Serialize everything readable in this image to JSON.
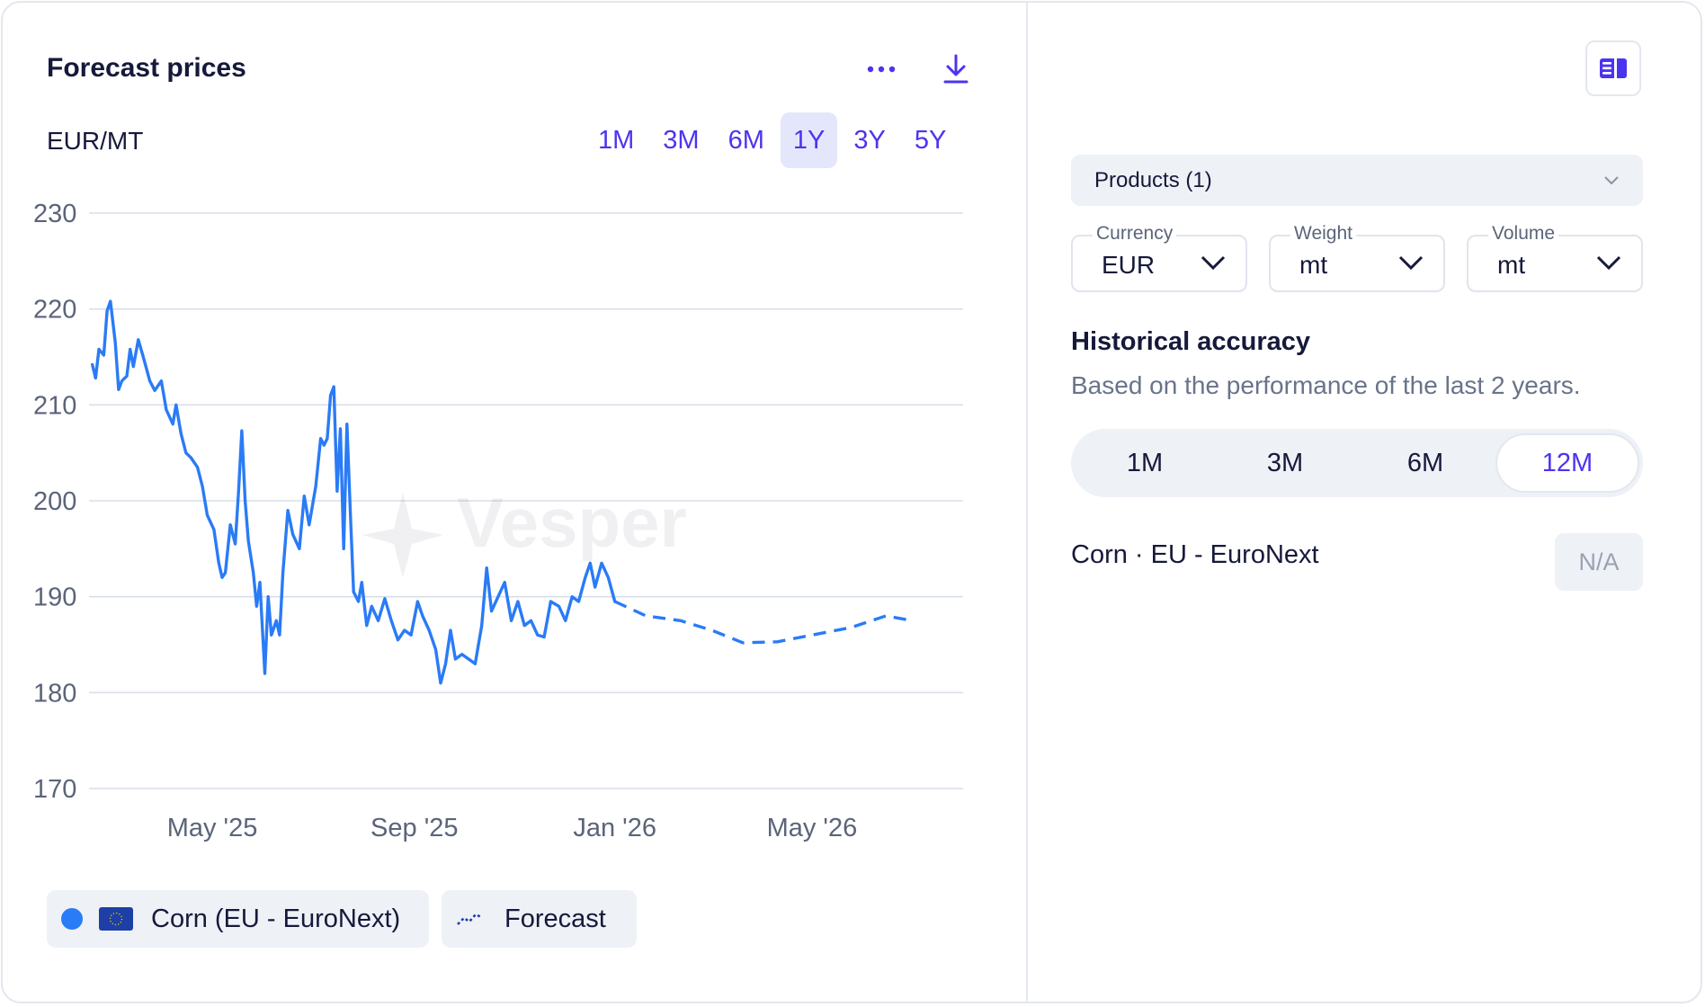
{
  "header": {
    "title": "Forecast prices",
    "unit": "EUR/MT"
  },
  "range_tabs": [
    {
      "label": "1M",
      "active": false
    },
    {
      "label": "3M",
      "active": false
    },
    {
      "label": "6M",
      "active": false
    },
    {
      "label": "1Y",
      "active": true
    },
    {
      "label": "3Y",
      "active": false
    },
    {
      "label": "5Y",
      "active": false
    }
  ],
  "icons": {
    "more": "more-dots-icon",
    "download": "download-icon",
    "panel": "panel-toggle-icon",
    "chevron": "chevron-down-icon"
  },
  "watermark": "Vesper",
  "colors": {
    "accent": "#4b34f0",
    "series": "#2a7bf6",
    "grid": "#d8deea",
    "chip_bg": "#eef1f6"
  },
  "chart_data": {
    "type": "line",
    "ylim": [
      170,
      230
    ],
    "yticks": [
      230,
      220,
      210,
      200,
      190,
      180,
      170
    ],
    "xticks": [
      "May '25",
      "Sep '25",
      "Jan '26",
      "May '26"
    ],
    "xtick_dates": [
      "2025-05-01",
      "2025-09-01",
      "2026-01-01",
      "2026-05-01"
    ],
    "xlim": [
      "2025-02-15",
      "2026-08-01"
    ],
    "grid": true,
    "series": [
      {
        "name": "Corn (EU - EuroNext)",
        "style": "solid",
        "points": [
          [
            "2025-02-17",
            214.2
          ],
          [
            "2025-02-19",
            212.8
          ],
          [
            "2025-02-21",
            215.8
          ],
          [
            "2025-02-24",
            215.2
          ],
          [
            "2025-02-26",
            219.8
          ],
          [
            "2025-02-28",
            220.8
          ],
          [
            "2025-03-03",
            216.5
          ],
          [
            "2025-03-05",
            211.6
          ],
          [
            "2025-03-07",
            212.5
          ],
          [
            "2025-03-10",
            213.0
          ],
          [
            "2025-03-12",
            215.8
          ],
          [
            "2025-03-14",
            214.0
          ],
          [
            "2025-03-17",
            216.8
          ],
          [
            "2025-03-20",
            215.0
          ],
          [
            "2025-03-24",
            212.5
          ],
          [
            "2025-03-27",
            211.5
          ],
          [
            "2025-03-31",
            212.5
          ],
          [
            "2025-04-03",
            209.5
          ],
          [
            "2025-04-07",
            208.0
          ],
          [
            "2025-04-09",
            210.0
          ],
          [
            "2025-04-12",
            207.0
          ],
          [
            "2025-04-15",
            205.0
          ],
          [
            "2025-04-18",
            204.5
          ],
          [
            "2025-04-22",
            203.5
          ],
          [
            "2025-04-25",
            201.5
          ],
          [
            "2025-04-28",
            198.5
          ],
          [
            "2025-05-02",
            197.0
          ],
          [
            "2025-05-05",
            193.5
          ],
          [
            "2025-05-07",
            192.0
          ],
          [
            "2025-05-09",
            192.5
          ],
          [
            "2025-05-12",
            197.5
          ],
          [
            "2025-05-15",
            195.5
          ],
          [
            "2025-05-17",
            201.0
          ],
          [
            "2025-05-19",
            207.3
          ],
          [
            "2025-05-21",
            200.0
          ],
          [
            "2025-05-23",
            195.8
          ],
          [
            "2025-05-26",
            192.5
          ],
          [
            "2025-05-28",
            189.0
          ],
          [
            "2025-05-30",
            191.5
          ],
          [
            "2025-06-02",
            182.0
          ],
          [
            "2025-06-04",
            190.0
          ],
          [
            "2025-06-06",
            186.0
          ],
          [
            "2025-06-09",
            187.5
          ],
          [
            "2025-06-11",
            186.0
          ],
          [
            "2025-06-13",
            192.5
          ],
          [
            "2025-06-16",
            199.0
          ],
          [
            "2025-06-19",
            196.5
          ],
          [
            "2025-06-23",
            195.0
          ],
          [
            "2025-06-26",
            200.5
          ],
          [
            "2025-06-29",
            197.5
          ],
          [
            "2025-07-03",
            201.5
          ],
          [
            "2025-07-06",
            206.5
          ],
          [
            "2025-07-08",
            205.8
          ],
          [
            "2025-07-10",
            206.5
          ],
          [
            "2025-07-12",
            211.0
          ],
          [
            "2025-07-14",
            211.9
          ],
          [
            "2025-07-16",
            201.0
          ],
          [
            "2025-07-18",
            207.5
          ],
          [
            "2025-07-20",
            195.0
          ],
          [
            "2025-07-22",
            208.0
          ],
          [
            "2025-07-24",
            199.0
          ],
          [
            "2025-07-26",
            190.5
          ],
          [
            "2025-07-29",
            189.5
          ],
          [
            "2025-07-31",
            191.5
          ],
          [
            "2025-08-03",
            187.0
          ],
          [
            "2025-08-06",
            189.0
          ],
          [
            "2025-08-10",
            187.5
          ],
          [
            "2025-08-14",
            189.8
          ],
          [
            "2025-08-18",
            187.5
          ],
          [
            "2025-08-22",
            185.5
          ],
          [
            "2025-08-26",
            186.5
          ],
          [
            "2025-08-30",
            186.0
          ],
          [
            "2025-09-03",
            189.5
          ],
          [
            "2025-09-06",
            188.0
          ],
          [
            "2025-09-10",
            186.5
          ],
          [
            "2025-09-14",
            184.5
          ],
          [
            "2025-09-17",
            181.0
          ],
          [
            "2025-09-20",
            183.0
          ],
          [
            "2025-09-23",
            186.5
          ],
          [
            "2025-09-26",
            183.5
          ],
          [
            "2025-09-30",
            184.0
          ],
          [
            "2025-10-04",
            183.5
          ],
          [
            "2025-10-08",
            183.0
          ],
          [
            "2025-10-12",
            187.0
          ],
          [
            "2025-10-15",
            193.0
          ],
          [
            "2025-10-18",
            188.5
          ],
          [
            "2025-10-22",
            190.0
          ],
          [
            "2025-10-26",
            191.5
          ],
          [
            "2025-10-30",
            187.5
          ],
          [
            "2025-11-03",
            189.5
          ],
          [
            "2025-11-07",
            187.0
          ],
          [
            "2025-11-11",
            187.5
          ],
          [
            "2025-11-15",
            186.0
          ],
          [
            "2025-11-19",
            185.8
          ],
          [
            "2025-11-23",
            189.5
          ],
          [
            "2025-11-28",
            189.0
          ],
          [
            "2025-12-02",
            187.5
          ],
          [
            "2025-12-06",
            190.0
          ],
          [
            "2025-12-10",
            189.5
          ],
          [
            "2025-12-14",
            192.0
          ],
          [
            "2025-12-17",
            193.5
          ],
          [
            "2025-12-20",
            191.0
          ],
          [
            "2025-12-24",
            193.5
          ],
          [
            "2025-12-28",
            192.0
          ],
          [
            "2026-01-01",
            189.5
          ]
        ]
      },
      {
        "name": "Forecast",
        "style": "dashed",
        "points": [
          [
            "2026-01-01",
            189.5
          ],
          [
            "2026-01-20",
            188.0
          ],
          [
            "2026-02-10",
            187.5
          ],
          [
            "2026-03-01",
            186.5
          ],
          [
            "2026-03-20",
            185.2
          ],
          [
            "2026-04-10",
            185.3
          ],
          [
            "2026-05-01",
            186.0
          ],
          [
            "2026-05-25",
            186.8
          ],
          [
            "2026-06-15",
            188.0
          ],
          [
            "2026-07-01",
            187.5
          ]
        ]
      }
    ]
  },
  "legend": [
    {
      "label": "Corn (EU - EuroNext)",
      "marker": "dot-and-eu-flag"
    },
    {
      "label": "Forecast",
      "marker": "trend-dashed-icon"
    }
  ],
  "filters": {
    "products_label": "Products (1)",
    "currency": {
      "label": "Currency",
      "value": "EUR"
    },
    "weight": {
      "label": "Weight",
      "value": "mt"
    },
    "volume": {
      "label": "Volume",
      "value": "mt"
    }
  },
  "accuracy": {
    "title": "Historical accuracy",
    "subtitle": "Based on the performance of the last 2 years.",
    "tabs": [
      {
        "label": "1M",
        "active": false
      },
      {
        "label": "3M",
        "active": false
      },
      {
        "label": "6M",
        "active": false
      },
      {
        "label": "12M",
        "active": true
      }
    ],
    "row_label": "Corn · EU - EuroNext",
    "row_value": "N/A"
  }
}
